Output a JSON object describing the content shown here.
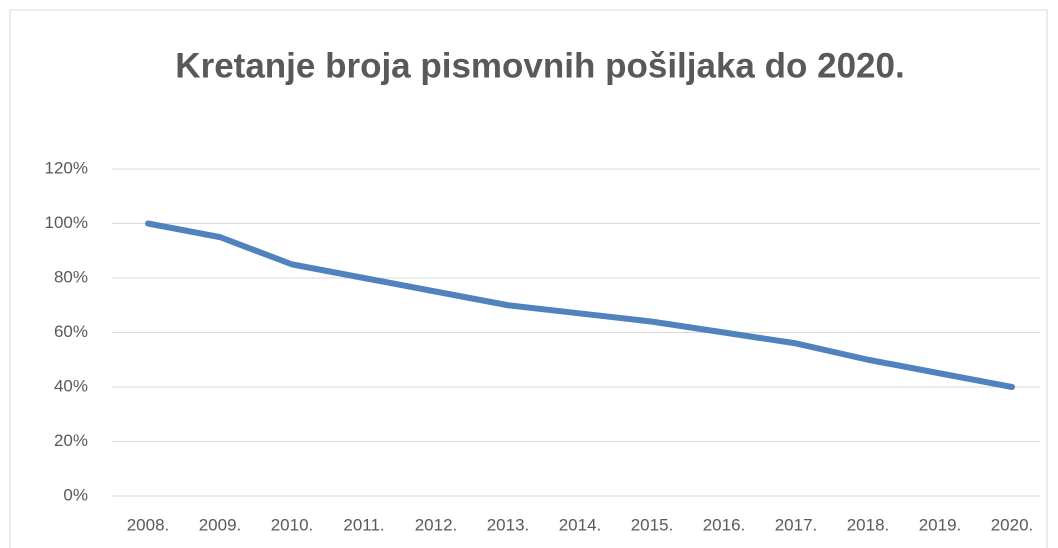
{
  "chart_data": {
    "type": "line",
    "title": "Kretanje broja pismovnih pošiljaka do 2020.",
    "categories": [
      "2008.",
      "2009.",
      "2010.",
      "2011.",
      "2012.",
      "2013.",
      "2014.",
      "2015.",
      "2016.",
      "2017.",
      "2018.",
      "2019.",
      "2020."
    ],
    "values": [
      100,
      95,
      85,
      80,
      75,
      70,
      67,
      64,
      60,
      56,
      50,
      45,
      40
    ],
    "color": "#5082be",
    "ylim": [
      0,
      120
    ],
    "yticks": [
      {
        "value": 0,
        "label": "0%"
      },
      {
        "value": 20,
        "label": "20%"
      },
      {
        "value": 40,
        "label": "40%"
      },
      {
        "value": 60,
        "label": "60%"
      },
      {
        "value": 80,
        "label": "80%"
      },
      {
        "value": 100,
        "label": "100%"
      },
      {
        "value": 120,
        "label": "120%"
      }
    ],
    "grid": true
  }
}
